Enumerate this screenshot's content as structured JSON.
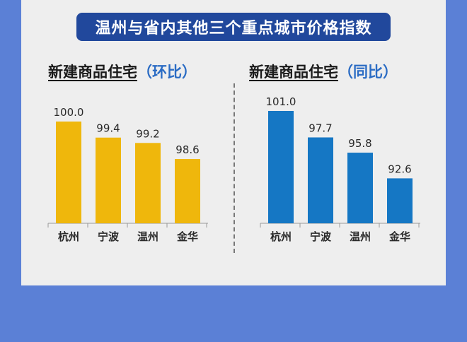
{
  "banner": {
    "title": "温州与省内其他三个重点城市价格指数"
  },
  "colors": {
    "background": "#5b80d6",
    "panel": "#eeeeee",
    "banner": "#21489c",
    "bar_left": "#efb70c",
    "bar_right": "#1577c4",
    "accent": "#2b6cc4"
  },
  "chart_data": [
    {
      "type": "bar",
      "title": "新建商品住宅",
      "subtitle": "（环比）",
      "categories": [
        "杭州",
        "宁波",
        "温州",
        "金华"
      ],
      "values": [
        100.0,
        99.4,
        99.2,
        98.6
      ],
      "value_labels": [
        "100.0",
        "99.4",
        "99.2",
        "98.6"
      ],
      "color": "#efb70c",
      "ylim": [
        96.2,
        100.0
      ]
    },
    {
      "type": "bar",
      "title": "新建商品住宅",
      "subtitle": "（同比）",
      "categories": [
        "杭州",
        "宁波",
        "温州",
        "金华"
      ],
      "values": [
        101.0,
        97.7,
        95.8,
        92.6
      ],
      "value_labels": [
        "101.0",
        "97.7",
        "95.8",
        "92.6"
      ],
      "color": "#1577c4",
      "ylim": [
        87.0,
        101.0
      ]
    }
  ]
}
